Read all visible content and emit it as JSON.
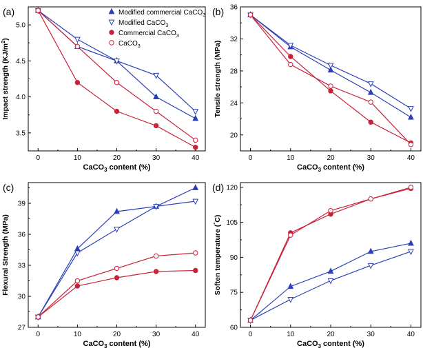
{
  "colors": {
    "blue": "#2b3fb8",
    "red": "#c8223a",
    "axis": "#000000"
  },
  "chart_data": [
    {
      "type": "line",
      "panel_label": "(a)",
      "xlabel": "CaCO3 content (%)",
      "ylabel": "Impact strength (KJ/m2)",
      "x": [
        0,
        10,
        20,
        30,
        40
      ],
      "xlim": [
        -2.5,
        42.5
      ],
      "ylim": [
        3.25,
        5.25
      ],
      "xticks": [
        0,
        10,
        20,
        30,
        40
      ],
      "yticks": [
        3.5,
        4.0,
        4.5,
        5.0
      ],
      "ytick_labels": [
        "3.5",
        "4.0",
        "4.5",
        "5.0"
      ],
      "legend": "top-right",
      "series": [
        {
          "name": "Modified commercial CaCO3",
          "color": "blue",
          "marker": "triangle-up-filled",
          "values": [
            5.2,
            4.7,
            4.5,
            4.0,
            3.7
          ]
        },
        {
          "name": "Modified CaCO3",
          "color": "blue",
          "marker": "triangle-down-open",
          "values": [
            5.2,
            4.8,
            4.5,
            4.3,
            3.8
          ]
        },
        {
          "name": "Commercial CaCO3",
          "color": "red",
          "marker": "circle-filled",
          "values": [
            5.2,
            4.2,
            3.8,
            3.6,
            3.3
          ]
        },
        {
          "name": "CaCO3",
          "color": "red",
          "marker": "circle-open",
          "values": [
            5.2,
            4.7,
            4.2,
            3.8,
            3.4
          ]
        }
      ]
    },
    {
      "type": "line",
      "panel_label": "(b)",
      "xlabel": "CaCO3 content (%)",
      "ylabel": "Tensile strength (MPa)",
      "x": [
        0,
        10,
        20,
        30,
        40
      ],
      "xlim": [
        -2.5,
        42.5
      ],
      "ylim": [
        18,
        36
      ],
      "xticks": [
        0,
        10,
        20,
        30,
        40
      ],
      "yticks": [
        20,
        24,
        28,
        32,
        36
      ],
      "ytick_labels": [
        "20",
        "24",
        "28",
        "32",
        "36"
      ],
      "series": [
        {
          "name": "Modified commercial CaCO3",
          "color": "blue",
          "marker": "triangle-up-filled",
          "values": [
            35.0,
            31.0,
            28.1,
            25.3,
            22.2
          ]
        },
        {
          "name": "Modified CaCO3",
          "color": "blue",
          "marker": "triangle-down-open",
          "values": [
            35.0,
            31.2,
            28.7,
            26.4,
            23.3
          ]
        },
        {
          "name": "Commercial CaCO3",
          "color": "red",
          "marker": "circle-filled",
          "values": [
            35.0,
            29.8,
            25.5,
            21.6,
            19.0
          ]
        },
        {
          "name": "CaCO3",
          "color": "red",
          "marker": "circle-open",
          "values": [
            35.0,
            28.8,
            26.1,
            24.1,
            18.8
          ]
        }
      ]
    },
    {
      "type": "line",
      "panel_label": "(c)",
      "xlabel": "CaCO3 content (%)",
      "ylabel": "Flexural Strength (MPa)",
      "x": [
        0,
        10,
        20,
        30,
        40
      ],
      "xlim": [
        -2.5,
        42.5
      ],
      "ylim": [
        27,
        41
      ],
      "xticks": [
        0,
        10,
        20,
        30,
        40
      ],
      "yticks": [
        27,
        30,
        33,
        36,
        39
      ],
      "ytick_labels": [
        "27",
        "30",
        "33",
        "36",
        "39"
      ],
      "series": [
        {
          "name": "Modified commercial CaCO3",
          "color": "blue",
          "marker": "triangle-up-filled",
          "values": [
            28.0,
            34.6,
            38.2,
            38.7,
            40.5
          ]
        },
        {
          "name": "Modified CaCO3",
          "color": "blue",
          "marker": "triangle-down-open",
          "values": [
            28.0,
            34.2,
            36.5,
            38.7,
            39.2
          ]
        },
        {
          "name": "Commercial CaCO3",
          "color": "red",
          "marker": "circle-filled",
          "values": [
            28.0,
            31.0,
            31.8,
            32.4,
            32.5
          ]
        },
        {
          "name": "CaCO3",
          "color": "red",
          "marker": "circle-open",
          "values": [
            28.0,
            31.5,
            32.7,
            33.9,
            34.2
          ]
        }
      ]
    },
    {
      "type": "line",
      "panel_label": "(d)",
      "xlabel": "CaCO3 content (%)",
      "ylabel": "Soften temperature (°C)",
      "x": [
        0,
        10,
        20,
        30,
        40
      ],
      "xlim": [
        -2.5,
        42.5
      ],
      "ylim": [
        60,
        122
      ],
      "xticks": [
        0,
        10,
        20,
        30,
        40
      ],
      "yticks": [
        60,
        75,
        90,
        105,
        120
      ],
      "ytick_labels": [
        "60",
        "75",
        "90",
        "105",
        "120"
      ],
      "series": [
        {
          "name": "Modified commercial CaCO3",
          "color": "blue",
          "marker": "triangle-up-filled",
          "values": [
            63,
            77.5,
            84,
            92.5,
            96
          ]
        },
        {
          "name": "Modified CaCO3",
          "color": "blue",
          "marker": "triangle-down-open",
          "values": [
            63,
            72,
            80,
            86.5,
            92.5
          ]
        },
        {
          "name": "Commercial CaCO3",
          "color": "red",
          "marker": "circle-filled",
          "values": [
            63,
            100.5,
            108.5,
            115,
            119.5
          ]
        },
        {
          "name": "CaCO3",
          "color": "red",
          "marker": "circle-open",
          "values": [
            63,
            99.5,
            110,
            115,
            120
          ]
        }
      ]
    }
  ]
}
